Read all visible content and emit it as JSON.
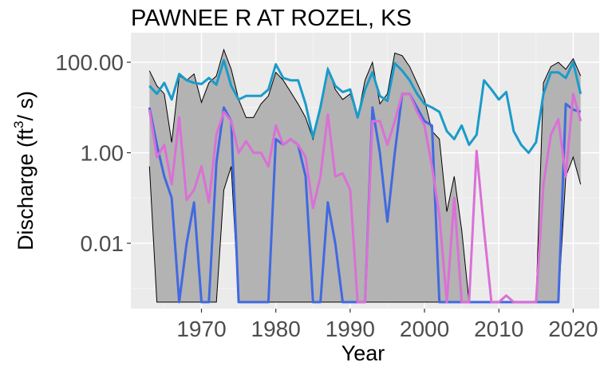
{
  "chart_data": {
    "type": "line",
    "title": "PAWNEE R AT ROZEL, KS",
    "xlabel": "Year",
    "ylabel": {
      "prefix": "Discharge (ft",
      "superscript": "3",
      "suffix": "/ s)"
    },
    "y_scale": "log10",
    "xlim": [
      1960.5,
      2023.5
    ],
    "ylim": [
      0.00036,
      450
    ],
    "x_ticks": [
      1970,
      1980,
      1990,
      2000,
      2010,
      2020
    ],
    "x_tick_labels": [
      "1970",
      "1980",
      "1990",
      "2000",
      "2010",
      "2020"
    ],
    "y_ticks": [
      0.01,
      1,
      100
    ],
    "y_tick_labels": [
      "0.01",
      "1.00",
      "100.00"
    ],
    "grid": true,
    "legend": "none",
    "colors": {
      "panel_background": "#ebebeb",
      "grid_major": "#ffffff",
      "grid_minor": "#f5f5f5",
      "band_fill": "#b3b3b3",
      "band_outline": "#000000",
      "series_high": "#1a9bc9",
      "series_low": "#4169e1",
      "series_mid": "#da70d6"
    },
    "range_band": {
      "x": [
        1963,
        1964,
        1965,
        1966,
        1967,
        1968,
        1969,
        1970,
        1971,
        1972,
        1973,
        1974,
        1975,
        1976,
        1977,
        1978,
        1979,
        1980,
        1981,
        1982,
        1983,
        1984,
        1985,
        1986,
        1987,
        1988,
        1989,
        1990,
        1991,
        1992,
        1993,
        1994,
        1995,
        1996,
        1997,
        1998,
        1999,
        2000,
        2001,
        2002,
        2003,
        2004,
        2005,
        2006,
        2007,
        2008,
        2009,
        2010,
        2011,
        2012,
        2013,
        2014,
        2015,
        2016,
        2017,
        2018,
        2019,
        2020,
        2021
      ],
      "upper": [
        65,
        30,
        20,
        1.7,
        50,
        40,
        55,
        13,
        35,
        50,
        190,
        70,
        15,
        6,
        6,
        12,
        18,
        60,
        40,
        22,
        12,
        6,
        2,
        12,
        75,
        25,
        15,
        20,
        6,
        40,
        100,
        12,
        20,
        160,
        140,
        80,
        35,
        15,
        3,
        2,
        0.05,
        0.3,
        0.02,
        0.0005,
        0.0005,
        0.0005,
        0.0005,
        0.0005,
        0.0005,
        0.0005,
        0.0005,
        0.0005,
        0.0005,
        35,
        80,
        100,
        70,
        120,
        50
      ],
      "lower": [
        0.5,
        0.0005,
        0.0005,
        0.0005,
        0.0005,
        0.0005,
        0.0005,
        0.0005,
        0.0005,
        0.0005,
        0.15,
        0.5,
        0.0005,
        0.0005,
        0.0005,
        0.0005,
        0.0005,
        0.0005,
        0.0005,
        0.0005,
        0.0005,
        0.0005,
        0.0005,
        0.0005,
        0.0005,
        0.0005,
        0.0005,
        0.0005,
        0.0005,
        0.0005,
        0.0005,
        0.0005,
        0.0005,
        0.0005,
        0.0005,
        0.0005,
        0.0005,
        0.0005,
        0.0005,
        0.0005,
        0.0005,
        0.0005,
        0.0005,
        0.0005,
        0.0005,
        0.0005,
        0.0005,
        0.0005,
        0.0005,
        0.0005,
        0.0005,
        0.0005,
        0.0005,
        0.0005,
        0.0005,
        0.0005,
        0.3,
        0.8,
        0.2
      ]
    },
    "series": [
      {
        "key": "high",
        "x": [
          1963,
          1964,
          1965,
          1966,
          1967,
          1968,
          1969,
          1970,
          1971,
          1972,
          1973,
          1974,
          1975,
          1976,
          1977,
          1978,
          1979,
          1980,
          1981,
          1982,
          1983,
          1984,
          1985,
          1986,
          1987,
          1988,
          1989,
          1990,
          1991,
          1992,
          1993,
          1994,
          1995,
          1996,
          1997,
          1998,
          1999,
          2000,
          2001,
          2002,
          2003,
          2004,
          2005,
          2006,
          2007,
          2008,
          2009,
          2010,
          2011,
          2012,
          2013,
          2014,
          2015,
          2016,
          2017,
          2018,
          2019,
          2020,
          2021
        ],
        "values": [
          30,
          20,
          35,
          15,
          55,
          40,
          35,
          33,
          45,
          32,
          110,
          30,
          15,
          18,
          18,
          18,
          25,
          90,
          45,
          40,
          40,
          12,
          2.2,
          10,
          70,
          30,
          22,
          25,
          6,
          25,
          60,
          18,
          14,
          95,
          65,
          40,
          20,
          12,
          10,
          8,
          3,
          2,
          4,
          1.5,
          2.5,
          40,
          25,
          15,
          22,
          3,
          1.5,
          1,
          1.7,
          20,
          60,
          60,
          45,
          100,
          20
        ]
      },
      {
        "key": "low",
        "x": [
          1963,
          1964,
          1965,
          1966,
          1967,
          1968,
          1969,
          1970,
          1971,
          1972,
          1973,
          1974,
          1975,
          1976,
          1977,
          1978,
          1979,
          1980,
          1981,
          1982,
          1983,
          1984,
          1985,
          1986,
          1987,
          1988,
          1989,
          1990,
          1991,
          1992,
          1993,
          1994,
          1995,
          1996,
          1997,
          1998,
          1999,
          2000,
          2001,
          2002,
          2003,
          2004,
          2005,
          2006,
          2007,
          2008,
          2009,
          2010,
          2011,
          2012,
          2013,
          2014,
          2015,
          2016,
          2017,
          2018,
          2019,
          2020,
          2021
        ],
        "values": [
          10,
          1.5,
          0.3,
          0.1,
          0.0005,
          0.01,
          0.08,
          0.0005,
          0.0005,
          0.6,
          10,
          5,
          0.0005,
          0.0005,
          0.0005,
          0.0005,
          0.0005,
          2,
          1.5,
          2,
          1.5,
          0.3,
          0.0005,
          0.0005,
          0.08,
          0.01,
          0.0005,
          0.0005,
          0.0005,
          0.0005,
          10,
          1,
          0.03,
          1,
          20,
          20,
          10,
          5,
          4,
          0.0005,
          0.0005,
          0.0005,
          0.0005,
          0.0005,
          0.0005,
          0.0005,
          0.0005,
          0.0005,
          0.0005,
          0.0005,
          0.0005,
          0.0005,
          0.0005,
          0.0005,
          0.0005,
          0.0005,
          12,
          9,
          8
        ]
      },
      {
        "key": "mid",
        "x": [
          1963,
          1964,
          1965,
          1966,
          1967,
          1968,
          1969,
          1970,
          1971,
          1972,
          1973,
          1974,
          1975,
          1976,
          1977,
          1978,
          1979,
          1980,
          1981,
          1982,
          1983,
          1984,
          1985,
          1986,
          1987,
          1988,
          1989,
          1990,
          1991,
          1992,
          1993,
          1994,
          1995,
          1996,
          1997,
          1998,
          1999,
          2000,
          2001,
          2002,
          2003,
          2004,
          2005,
          2006,
          2007,
          2008,
          2009,
          2010,
          2011,
          2012,
          2013,
          2014,
          2015,
          2016,
          2017,
          2018,
          2019,
          2020,
          2021
        ],
        "values": [
          9,
          0.8,
          1.5,
          0.2,
          6,
          0.09,
          0.15,
          0.5,
          0.08,
          2.5,
          8,
          5,
          1,
          1.8,
          1,
          1,
          0.5,
          4,
          1.5,
          2,
          1.5,
          0.8,
          0.06,
          0.3,
          7,
          0.3,
          0.35,
          0.15,
          0.0005,
          0.0005,
          5,
          5,
          1.5,
          5,
          20,
          20,
          8,
          4,
          0.5,
          0.04,
          0.0005,
          0.1,
          0.0005,
          0.0005,
          1.1,
          0.02,
          0.0005,
          0.0005,
          0.0007,
          0.0005,
          0.0005,
          0.0005,
          0.0005,
          0.2,
          2.5,
          5.5,
          0.3,
          20,
          5
        ]
      }
    ]
  }
}
